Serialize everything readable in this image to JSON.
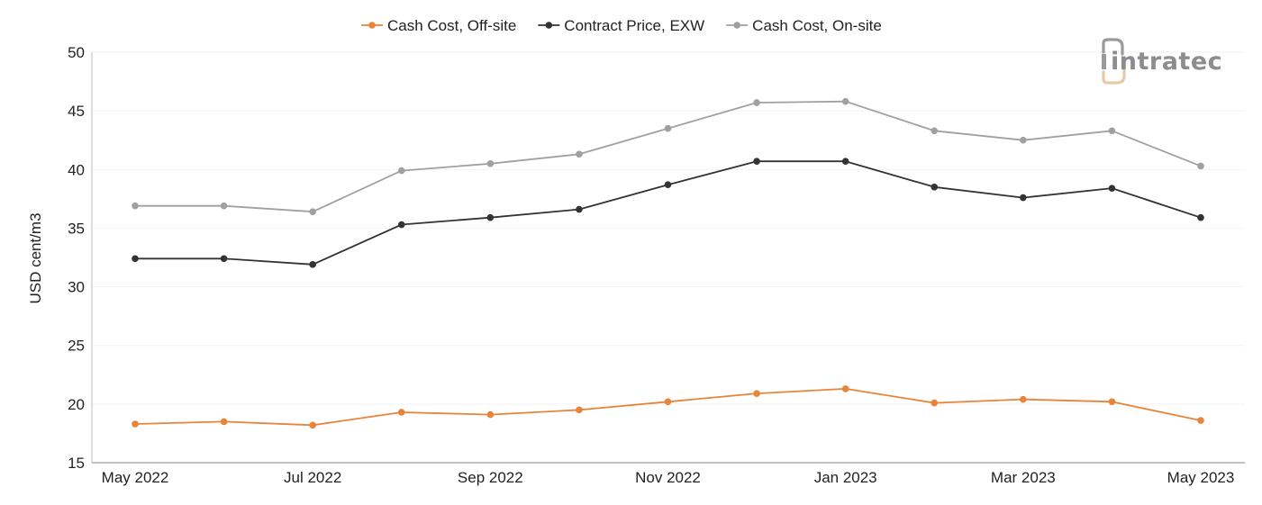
{
  "brand": {
    "logo_text": "intratec",
    "accent": "#e8c9a6",
    "gray": "#8d8d8d"
  },
  "chart_data": {
    "type": "line",
    "title": "",
    "xlabel": "",
    "ylabel": "USD cent/m3",
    "ylim": [
      15,
      50
    ],
    "yticks": [
      15,
      20,
      25,
      30,
      35,
      40,
      45,
      50
    ],
    "grid": "horizontal-light",
    "legend_position": "top-center",
    "x": [
      "May 2022",
      "Jun 2022",
      "Jul 2022",
      "Aug 2022",
      "Sep 2022",
      "Oct 2022",
      "Nov 2022",
      "Dec 2022",
      "Jan 2023",
      "Feb 2023",
      "Mar 2023",
      "Apr 2023",
      "May 2023"
    ],
    "xtick_labels": [
      "May 2022",
      "",
      "Jul 2022",
      "",
      "Sep 2022",
      "",
      "Nov 2022",
      "",
      "Jan 2023",
      "",
      "Mar 2023",
      "",
      "May 2023"
    ],
    "series": [
      {
        "name": "Cash Cost, Off-site",
        "color": "#e8833a",
        "values": [
          18.3,
          18.5,
          18.2,
          19.3,
          19.1,
          19.5,
          20.2,
          20.9,
          21.3,
          20.1,
          20.4,
          20.2,
          18.6
        ]
      },
      {
        "name": "Contract Price, EXW",
        "color": "#333333",
        "values": [
          32.4,
          32.4,
          31.9,
          35.3,
          35.9,
          36.6,
          38.7,
          40.7,
          40.7,
          38.5,
          37.6,
          38.4,
          35.9
        ]
      },
      {
        "name": "Cash Cost, On-site",
        "color": "#a0a0a0",
        "values": [
          36.9,
          36.9,
          36.4,
          39.9,
          40.5,
          41.3,
          43.5,
          45.7,
          45.8,
          43.3,
          42.5,
          43.3,
          40.3
        ]
      }
    ]
  }
}
